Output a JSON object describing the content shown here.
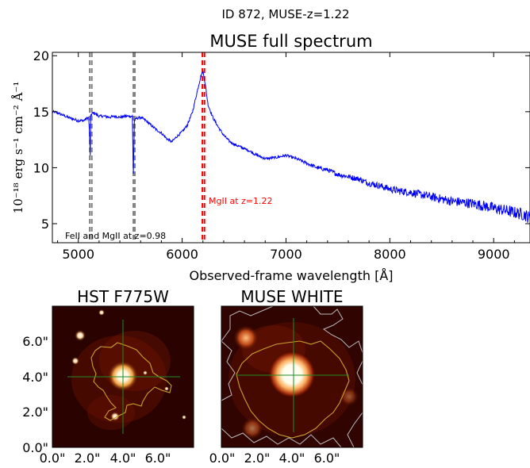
{
  "figure": {
    "suptitle": "ID 872, MUSE-z=1.22"
  },
  "chart_data": [
    {
      "type": "line",
      "title": "MUSE full spectrum",
      "xlabel": "Observed-frame wavelength [Å]",
      "ylabel": "10⁻¹⁸ erg s⁻¹ cm⁻² Å⁻¹",
      "xlim": [
        4750,
        9350
      ],
      "ylim": [
        3.3,
        20.3
      ],
      "xticks": [
        5000,
        6000,
        7000,
        8000,
        9000
      ],
      "yticks": [
        5,
        10,
        15,
        20
      ],
      "grid": false,
      "series": [
        {
          "color": "#0000ff",
          "x": [
            4750,
            4800,
            4900,
            5000,
            5050,
            5080,
            5100,
            5110,
            5115,
            5120,
            5130,
            5150,
            5200,
            5250,
            5300,
            5350,
            5400,
            5450,
            5500,
            5520,
            5530,
            5540,
            5560,
            5600,
            5650,
            5700,
            5750,
            5800,
            5850,
            5900,
            5950,
            6000,
            6050,
            6100,
            6150,
            6180,
            6200,
            6220,
            6250,
            6300,
            6350,
            6400,
            6450,
            6500,
            6550,
            6600,
            6650,
            6700,
            6750,
            6800,
            6900,
            7000,
            7100,
            7200,
            7300,
            7400,
            7500,
            7600,
            7700,
            7800,
            7900,
            8000,
            8100,
            8200,
            8300,
            8400,
            8500,
            8600,
            8700,
            8800,
            8900,
            9000,
            9100,
            9200,
            9300,
            9350
          ],
          "y": [
            15.0,
            14.9,
            14.5,
            14.2,
            14.2,
            14.4,
            14.5,
            12.5,
            11.0,
            14.6,
            14.8,
            14.9,
            14.6,
            14.6,
            14.5,
            14.6,
            14.5,
            14.6,
            14.6,
            14.6,
            9.5,
            14.2,
            14.4,
            14.5,
            14.2,
            13.8,
            13.4,
            13.1,
            12.6,
            12.3,
            12.8,
            13.2,
            13.8,
            15.0,
            17.0,
            18.2,
            18.6,
            17.6,
            15.6,
            14.4,
            13.6,
            12.9,
            12.4,
            12.1,
            11.9,
            11.7,
            11.5,
            11.2,
            11.0,
            10.8,
            10.9,
            11.1,
            10.8,
            10.4,
            10.0,
            9.8,
            9.4,
            9.2,
            9.0,
            8.6,
            8.4,
            8.1,
            7.9,
            7.8,
            7.6,
            7.4,
            7.2,
            7.0,
            6.9,
            6.8,
            6.6,
            6.4,
            6.2,
            6.0,
            5.8,
            5.5
          ]
        }
      ],
      "vlines": [
        {
          "x": 5110,
          "color": "#808080"
        },
        {
          "x": 5130,
          "color": "#808080"
        },
        {
          "x": 5530,
          "color": "#808080"
        },
        {
          "x": 5545,
          "color": "#808080"
        },
        {
          "x": 6195,
          "color": "#ff0000"
        },
        {
          "x": 6215,
          "color": "#ff0000"
        }
      ],
      "annotations": [
        {
          "text": "MgII at z=1.22",
          "color": "#ff0000"
        },
        {
          "text": "FeII and MgII at z=0.98",
          "color": "#000000"
        }
      ]
    },
    {
      "type": "image",
      "title": "HST F775W",
      "xticks": [
        "0.0\"",
        "2.0\"",
        "4.0\"",
        "6.0\""
      ],
      "yticks": [
        "0.0\"",
        "2.0\"",
        "4.0\"",
        "6.0\""
      ],
      "contour_color": "#c8a030",
      "crosshair_color": "#228b22"
    },
    {
      "type": "image",
      "title": "MUSE WHITE",
      "xticks": [
        "0.0\"",
        "2.0\"",
        "4.0\"",
        "6.0\""
      ],
      "contour_color": "#c8a030",
      "contour2_color": "#bbbbbb",
      "crosshair_color": "#228b22"
    }
  ]
}
